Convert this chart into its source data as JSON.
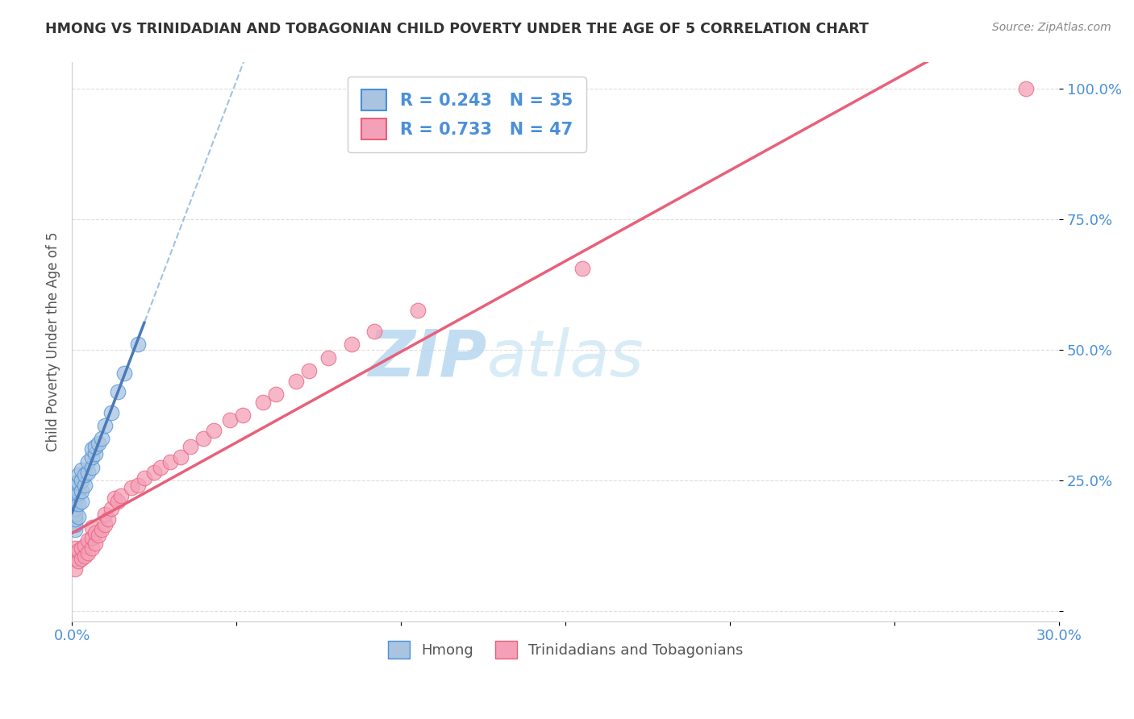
{
  "title": "HMONG VS TRINIDADIAN AND TOBAGONIAN CHILD POVERTY UNDER THE AGE OF 5 CORRELATION CHART",
  "source": "Source: ZipAtlas.com",
  "ylabel_label": "Child Poverty Under the Age of 5",
  "xlim": [
    0.0,
    0.3
  ],
  "ylim": [
    -0.02,
    1.05
  ],
  "xticks": [
    0.0,
    0.05,
    0.1,
    0.15,
    0.2,
    0.25,
    0.3
  ],
  "xticklabels": [
    "0.0%",
    "",
    "",
    "",
    "",
    "",
    "30.0%"
  ],
  "yticks": [
    0.0,
    0.25,
    0.5,
    0.75,
    1.0
  ],
  "yticklabels": [
    "",
    "25.0%",
    "50.0%",
    "75.0%",
    "100.0%"
  ],
  "legend1_label": "R = 0.243   N = 35",
  "legend2_label": "R = 0.733   N = 47",
  "legend_group1": "Hmong",
  "legend_group2": "Trinidadians and Tobagonians",
  "color_hmong": "#a8c4e0",
  "color_trini": "#f4a0b8",
  "color_hmong_edge": "#4a90d9",
  "color_trini_edge": "#e8607a",
  "color_hmong_line": "#4a7ab8",
  "color_hmong_dashed": "#8ab4d8",
  "color_trini_line": "#e8607a",
  "watermark_zip": "#c5dff0",
  "watermark_atlas": "#a0c8e8",
  "hmong_x": [
    0.001,
    0.001,
    0.001,
    0.001,
    0.001,
    0.001,
    0.001,
    0.001,
    0.001,
    0.001,
    0.002,
    0.002,
    0.002,
    0.002,
    0.002,
    0.003,
    0.003,
    0.003,
    0.003,
    0.004,
    0.004,
    0.005,
    0.005,
    0.006,
    0.006,
    0.006,
    0.007,
    0.007,
    0.008,
    0.009,
    0.01,
    0.012,
    0.014,
    0.016,
    0.02
  ],
  "hmong_y": [
    0.155,
    0.165,
    0.175,
    0.185,
    0.195,
    0.205,
    0.215,
    0.225,
    0.235,
    0.245,
    0.18,
    0.205,
    0.225,
    0.245,
    0.26,
    0.21,
    0.23,
    0.25,
    0.27,
    0.24,
    0.26,
    0.265,
    0.285,
    0.275,
    0.295,
    0.31,
    0.3,
    0.315,
    0.32,
    0.33,
    0.355,
    0.38,
    0.42,
    0.455,
    0.51
  ],
  "trini_x": [
    0.001,
    0.001,
    0.001,
    0.002,
    0.002,
    0.003,
    0.003,
    0.004,
    0.004,
    0.005,
    0.005,
    0.006,
    0.006,
    0.006,
    0.007,
    0.007,
    0.008,
    0.009,
    0.01,
    0.01,
    0.011,
    0.012,
    0.013,
    0.014,
    0.015,
    0.018,
    0.02,
    0.022,
    0.025,
    0.027,
    0.03,
    0.033,
    0.036,
    0.04,
    0.043,
    0.048,
    0.052,
    0.058,
    0.062,
    0.068,
    0.072,
    0.078,
    0.085,
    0.092,
    0.105,
    0.155,
    0.29
  ],
  "trini_y": [
    0.08,
    0.1,
    0.12,
    0.095,
    0.115,
    0.1,
    0.12,
    0.105,
    0.125,
    0.11,
    0.135,
    0.12,
    0.14,
    0.16,
    0.13,
    0.15,
    0.145,
    0.155,
    0.165,
    0.185,
    0.175,
    0.195,
    0.215,
    0.21,
    0.22,
    0.235,
    0.24,
    0.255,
    0.265,
    0.275,
    0.285,
    0.295,
    0.315,
    0.33,
    0.345,
    0.365,
    0.375,
    0.4,
    0.415,
    0.44,
    0.46,
    0.485,
    0.51,
    0.535,
    0.575,
    0.655,
    1.0
  ],
  "hmong_line_x": [
    0.001,
    0.008
  ],
  "hmong_line_y": [
    0.19,
    0.32
  ],
  "background_color": "#ffffff",
  "grid_color": "#d0d0d0",
  "title_color": "#333333",
  "tick_color": "#4a90d9",
  "r_value_color": "#4a90d9"
}
